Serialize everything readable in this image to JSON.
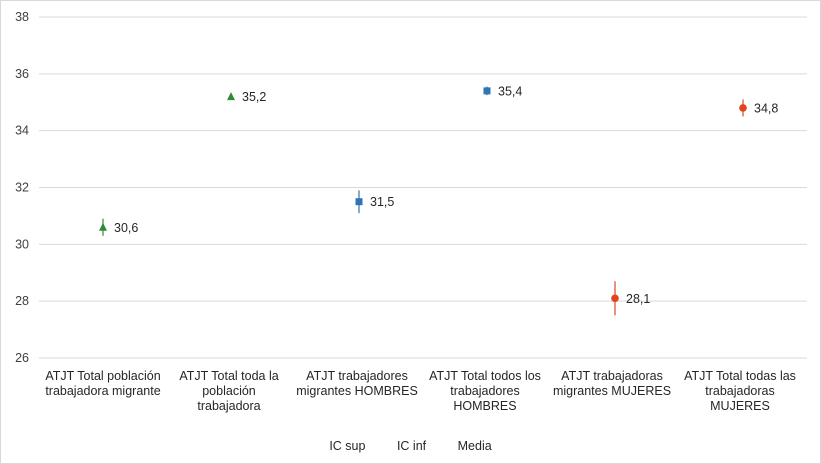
{
  "chart_data": {
    "type": "scatter",
    "categories": [
      "ATJT Total población\ntrabajadora migrante",
      "ATJT Total toda la\npoblación\ntrabajadora",
      "ATJT trabajadores\nmigrantes HOMBRES",
      "ATJT Total todos los\ntrabajadores\nHOMBRES",
      "ATJT trabajadoras\nmigrantes MUJERES",
      "ATJT Total todas las\ntrabajadoras\nMUJERES"
    ],
    "media": [
      30.6,
      35.2,
      31.5,
      35.4,
      28.1,
      34.8
    ],
    "media_labels": [
      "30,6",
      "35,2",
      "31,5",
      "35,4",
      "28,1",
      "34,8"
    ],
    "ic_sup": [
      30.9,
      35.3,
      31.9,
      35.55,
      28.7,
      35.1
    ],
    "ic_inf": [
      30.3,
      35.1,
      31.1,
      35.25,
      27.5,
      34.5
    ],
    "marker_shapes": [
      "triangle",
      "triangle",
      "square",
      "square",
      "circle",
      "circle"
    ],
    "marker_colors": [
      "#2e8b3a",
      "#2e8b3a",
      "#2e75b6",
      "#2e75b6",
      "#e0451f",
      "#e0451f"
    ],
    "ylim": [
      26,
      38
    ],
    "yticks": [
      "26",
      "28",
      "30",
      "32",
      "34",
      "36",
      "38"
    ],
    "ytick_values": [
      26,
      28,
      30,
      32,
      34,
      36,
      38
    ],
    "grid": true,
    "legend": {
      "position": "bottom",
      "items": [
        "IC sup",
        "IC inf",
        "Media"
      ]
    },
    "title": "",
    "xlabel": "",
    "ylabel": ""
  }
}
